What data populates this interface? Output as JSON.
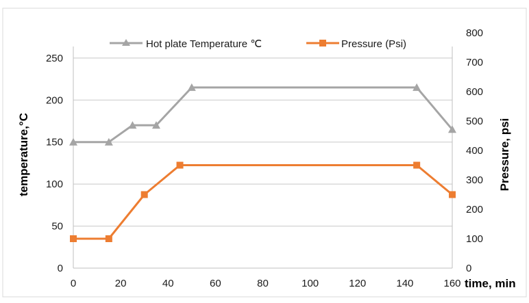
{
  "colors": {
    "temperature_series": "#a5a5a5",
    "pressure_series": "#ed7d31",
    "gridline": "#c8c8c8",
    "frame": "#d9d9d9"
  },
  "chart_data": {
    "type": "line",
    "xlabel": "time, min",
    "ylabel_left": "temperature,°C",
    "ylabel_right": "Pressure, psi",
    "xlim": [
      0,
      160
    ],
    "ylim_left": [
      0,
      280
    ],
    "ylim_right": [
      0,
      800
    ],
    "x_ticks": [
      "0",
      "20",
      "40",
      "60",
      "80",
      "100",
      "120",
      "140",
      "160"
    ],
    "y_left_ticks": [
      "0",
      "50",
      "100",
      "150",
      "200",
      "250"
    ],
    "y_right_ticks": [
      "0",
      "100",
      "200",
      "300",
      "400",
      "500",
      "600",
      "700",
      "800"
    ],
    "grid": true,
    "legend_position": "top",
    "series": [
      {
        "name": "Hot plate Temperature ℃",
        "axis": "left",
        "marker": "triangle",
        "x": [
          0,
          15,
          25,
          35,
          50,
          145,
          160
        ],
        "y": [
          150,
          150,
          170,
          170,
          215,
          215,
          165
        ]
      },
      {
        "name": "Pressure (Psi)",
        "axis": "right",
        "marker": "square",
        "x": [
          0,
          15,
          30,
          45,
          145,
          160
        ],
        "y": [
          100,
          100,
          250,
          350,
          350,
          250
        ]
      }
    ]
  }
}
